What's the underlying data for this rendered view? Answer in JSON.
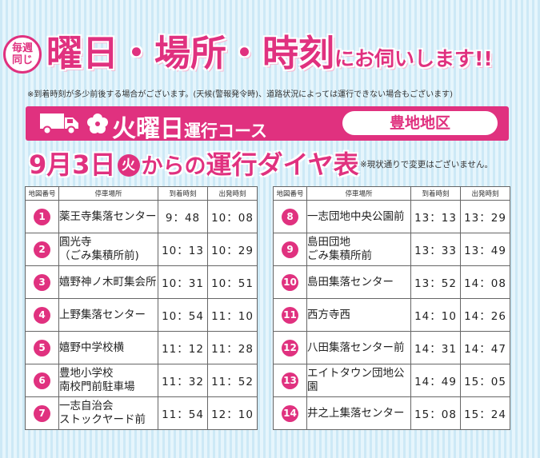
{
  "badge": {
    "line1": "毎週",
    "line2": "同じ"
  },
  "headline": {
    "main": "曜日・場所・時刻",
    "suffix": "にお伺いします!!"
  },
  "note_top": "※到着時刻が多少前後する場合がございます。(天候(警報発令時)、道路状況によっては運行できない場合もございます)",
  "course": {
    "title_main": "火曜日",
    "title_sub": "運行コース",
    "district": "豊地地区"
  },
  "schedule": {
    "date_prefix": "9月3日",
    "weekday": "火",
    "from": "から",
    "no": "の",
    "label": "運行ダイヤ表",
    "note": "※現状通りで変更はございません。"
  },
  "table_headers": {
    "num": "地図番号",
    "stop": "停車場所",
    "arrive": "到着時刻",
    "depart": "出発時刻"
  },
  "stops": [
    {
      "num": "1",
      "name": "薬王寺集落センター",
      "arrive": "9：48",
      "depart": "10：08"
    },
    {
      "num": "2",
      "name": "圓光寺\n（ごみ集積所前)",
      "arrive": "10：13",
      "depart": "10：29"
    },
    {
      "num": "3",
      "name": "嬉野神ノ木町集会所",
      "arrive": "10：31",
      "depart": "10：51"
    },
    {
      "num": "4",
      "name": "上野集落センター",
      "arrive": "10：54",
      "depart": "11：10"
    },
    {
      "num": "5",
      "name": "嬉野中学校横",
      "arrive": "11：12",
      "depart": "11：28"
    },
    {
      "num": "6",
      "name": "豊地小学校\n南校門前駐車場",
      "arrive": "11：32",
      "depart": "11：52"
    },
    {
      "num": "7",
      "name": "一志自治会\nストックヤード前",
      "arrive": "11：54",
      "depart": "12：10"
    },
    {
      "num": "8",
      "name": "一志団地中央公園前",
      "arrive": "13：13",
      "depart": "13：29"
    },
    {
      "num": "9",
      "name": "島田団地\nごみ集積所前",
      "arrive": "13：33",
      "depart": "13：49"
    },
    {
      "num": "10",
      "name": "島田集落センター",
      "arrive": "13：52",
      "depart": "14：08"
    },
    {
      "num": "11",
      "name": "西方寺西",
      "arrive": "14：10",
      "depart": "14：26"
    },
    {
      "num": "12",
      "name": "八田集落センター前",
      "arrive": "14：31",
      "depart": "14：47"
    },
    {
      "num": "13",
      "name": "エイトタウン団地公園",
      "arrive": "14：49",
      "depart": "15：05"
    },
    {
      "num": "14",
      "name": "井之上集落センター",
      "arrive": "15：08",
      "depart": "15：24"
    }
  ]
}
